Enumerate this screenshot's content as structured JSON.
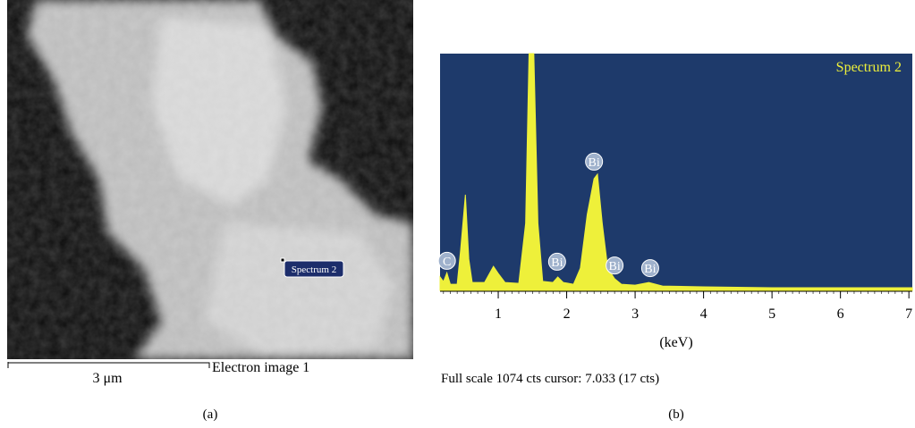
{
  "image_a": {
    "region_label": "Spectrum 2",
    "scale_bar": "3 μm",
    "title": "Electron image 1",
    "caption": "(a)"
  },
  "chart_data": {
    "type": "area",
    "background": "#1e3a6b",
    "series": [
      {
        "name": "Spectrum 2",
        "color": "#eef03a",
        "x": [
          0.15,
          0.2,
          0.25,
          0.3,
          0.4,
          0.45,
          0.52,
          0.57,
          0.62,
          0.8,
          0.93,
          1.0,
          1.1,
          1.3,
          1.4,
          1.45,
          1.52,
          1.58,
          1.65,
          1.8,
          1.87,
          1.95,
          2.1,
          2.2,
          2.3,
          2.4,
          2.45,
          2.52,
          2.6,
          2.7,
          2.8,
          3.0,
          3.2,
          3.4,
          4,
          5,
          6,
          7,
          7.05
        ],
        "values": [
          61,
          40,
          80,
          28,
          28,
          182,
          434,
          142,
          36,
          36,
          109,
          77,
          36,
          32,
          304,
          1074,
          1074,
          304,
          41,
          36,
          61,
          36,
          28,
          101,
          344,
          507,
          527,
          304,
          101,
          53,
          28,
          24,
          36,
          20,
          16,
          12,
          12,
          12,
          12
        ]
      }
    ],
    "xlim": [
      0.15,
      7.05
    ],
    "ylim": [
      0,
      1074
    ],
    "xticks": [
      1,
      2,
      3,
      4,
      5,
      6,
      7
    ],
    "xlabel": "(keV)",
    "annotations": [
      {
        "label": "C",
        "x": 0.25,
        "y": 134
      },
      {
        "label": "Bi",
        "x": 1.86,
        "y": 130
      },
      {
        "label": "Bi",
        "x": 2.4,
        "y": 584
      },
      {
        "label": "Bi",
        "x": 2.7,
        "y": 113
      },
      {
        "label": "Bi",
        "x": 3.22,
        "y": 101
      }
    ],
    "footer": "Full scale 1074 cts cursor: 7.033 (17 cts)",
    "caption": "(b)"
  }
}
